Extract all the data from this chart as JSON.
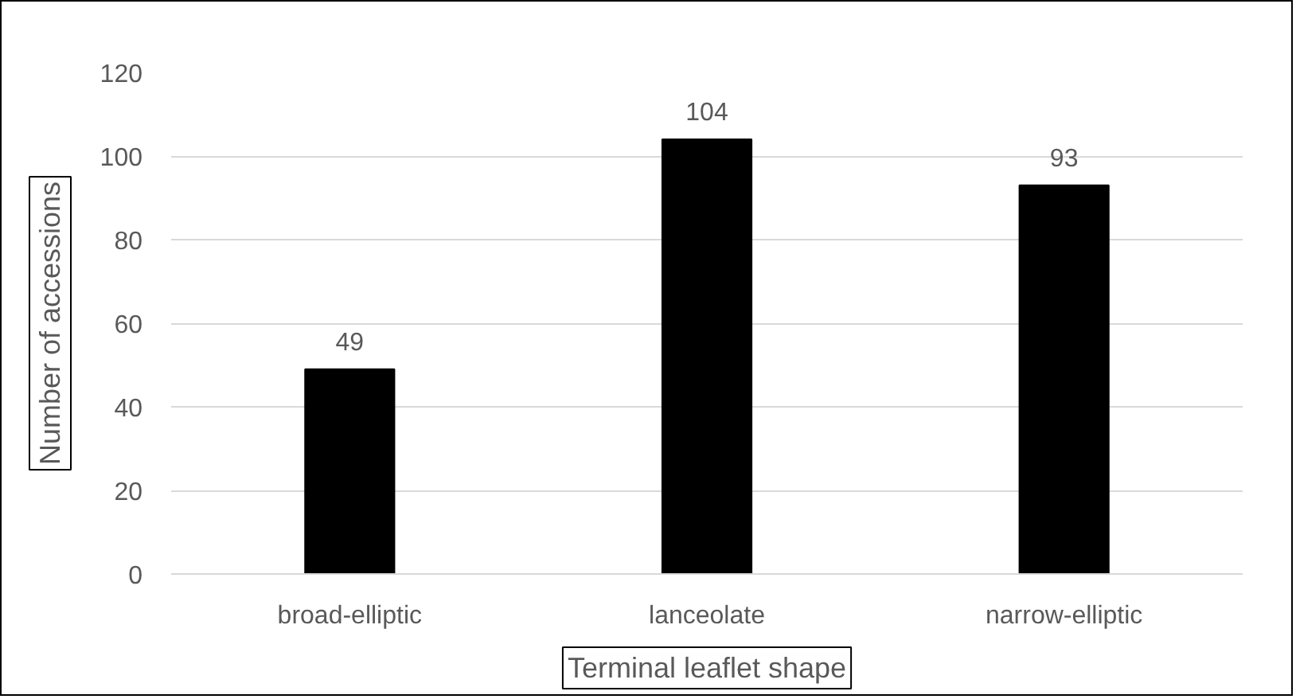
{
  "chart_data": {
    "type": "bar",
    "xlabel": "Terminal leaflet shape",
    "ylabel": "Number of accessions",
    "categories": [
      "broad-elliptic",
      "lanceolate",
      "narrow-elliptic"
    ],
    "values": [
      49,
      104,
      93
    ],
    "color": "#000000",
    "ylim": [
      0,
      120
    ],
    "yticks": [
      0,
      20,
      40,
      60,
      80,
      100,
      120
    ],
    "grid": "y",
    "data_labels": true
  }
}
